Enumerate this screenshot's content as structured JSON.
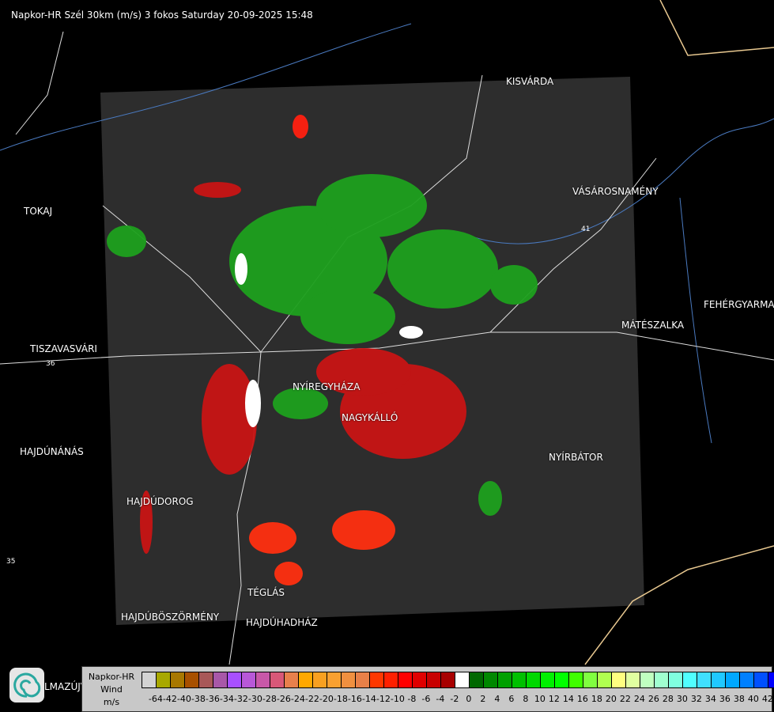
{
  "title": "Napkor-HR Szél 30km (m/s) 3 fokos Saturday 20-09-2025 15:48",
  "cities": [
    {
      "name": "KISVÁRDA"
    },
    {
      "name": "VÁSÁROSNAMÉNY"
    },
    {
      "name": "TOKAJ"
    },
    {
      "name": "TISZAVASVÁRI"
    },
    {
      "name": "MÁTÉSZALKA"
    },
    {
      "name": "FEHÉRGYARMA"
    },
    {
      "name": "NYÍREGYHÁZA"
    },
    {
      "name": "NAGYKÁLLÓ"
    },
    {
      "name": "NYÍRBÁTOR"
    },
    {
      "name": "HAJDÚNÁNÁS"
    },
    {
      "name": "HAJDÚDOROG"
    },
    {
      "name": "TÉGLÁS"
    },
    {
      "name": "HAJDÚBÖSZÖRMÉNY"
    },
    {
      "name": "HAJDÚHADHÁZ"
    },
    {
      "name": "LMAZÚJVÁR"
    }
  ],
  "roads": [
    "36",
    "41",
    "35"
  ],
  "legend": {
    "line1": "Napkor-HR",
    "line2": "Wind",
    "unit": "m/s",
    "colors": [
      "#d3d3d3",
      "#a8a800",
      "#a87800",
      "#a85000",
      "#a85858",
      "#a858a8",
      "#a850ff",
      "#b858d8",
      "#c858a8",
      "#d85878",
      "#e8804c",
      "#ffa800",
      "#f8a020",
      "#f8a030",
      "#f09040",
      "#e88048",
      "#ff3800",
      "#ff2000",
      "#ff0000",
      "#e00000",
      "#c80000",
      "#a80000",
      "#ffffff",
      "#006800",
      "#008800",
      "#00a000",
      "#00c000",
      "#00d800",
      "#00f000",
      "#00ff00",
      "#40ff00",
      "#80ff40",
      "#b0ff50",
      "#ffff80",
      "#e0ffa0",
      "#c0ffc0",
      "#a0ffd0",
      "#80ffe0",
      "#50ffff",
      "#40e0ff",
      "#20c8ff",
      "#00a8ff",
      "#0080ff",
      "#0050ff",
      "#0000ff"
    ],
    "ticks": [
      "-64",
      "-42",
      "-40",
      "-38",
      "-36",
      "-34",
      "-32",
      "-30",
      "-28",
      "-26",
      "-24",
      "-22",
      "-20",
      "-18",
      "-16",
      "-14",
      "-12",
      "-10",
      "-8",
      "-6",
      "-4",
      "-2",
      "0",
      "2",
      "4",
      "6",
      "8",
      "10",
      "12",
      "14",
      "16",
      "18",
      "20",
      "22",
      "24",
      "26",
      "28",
      "30",
      "32",
      "34",
      "36",
      "38",
      "40",
      "42"
    ]
  }
}
